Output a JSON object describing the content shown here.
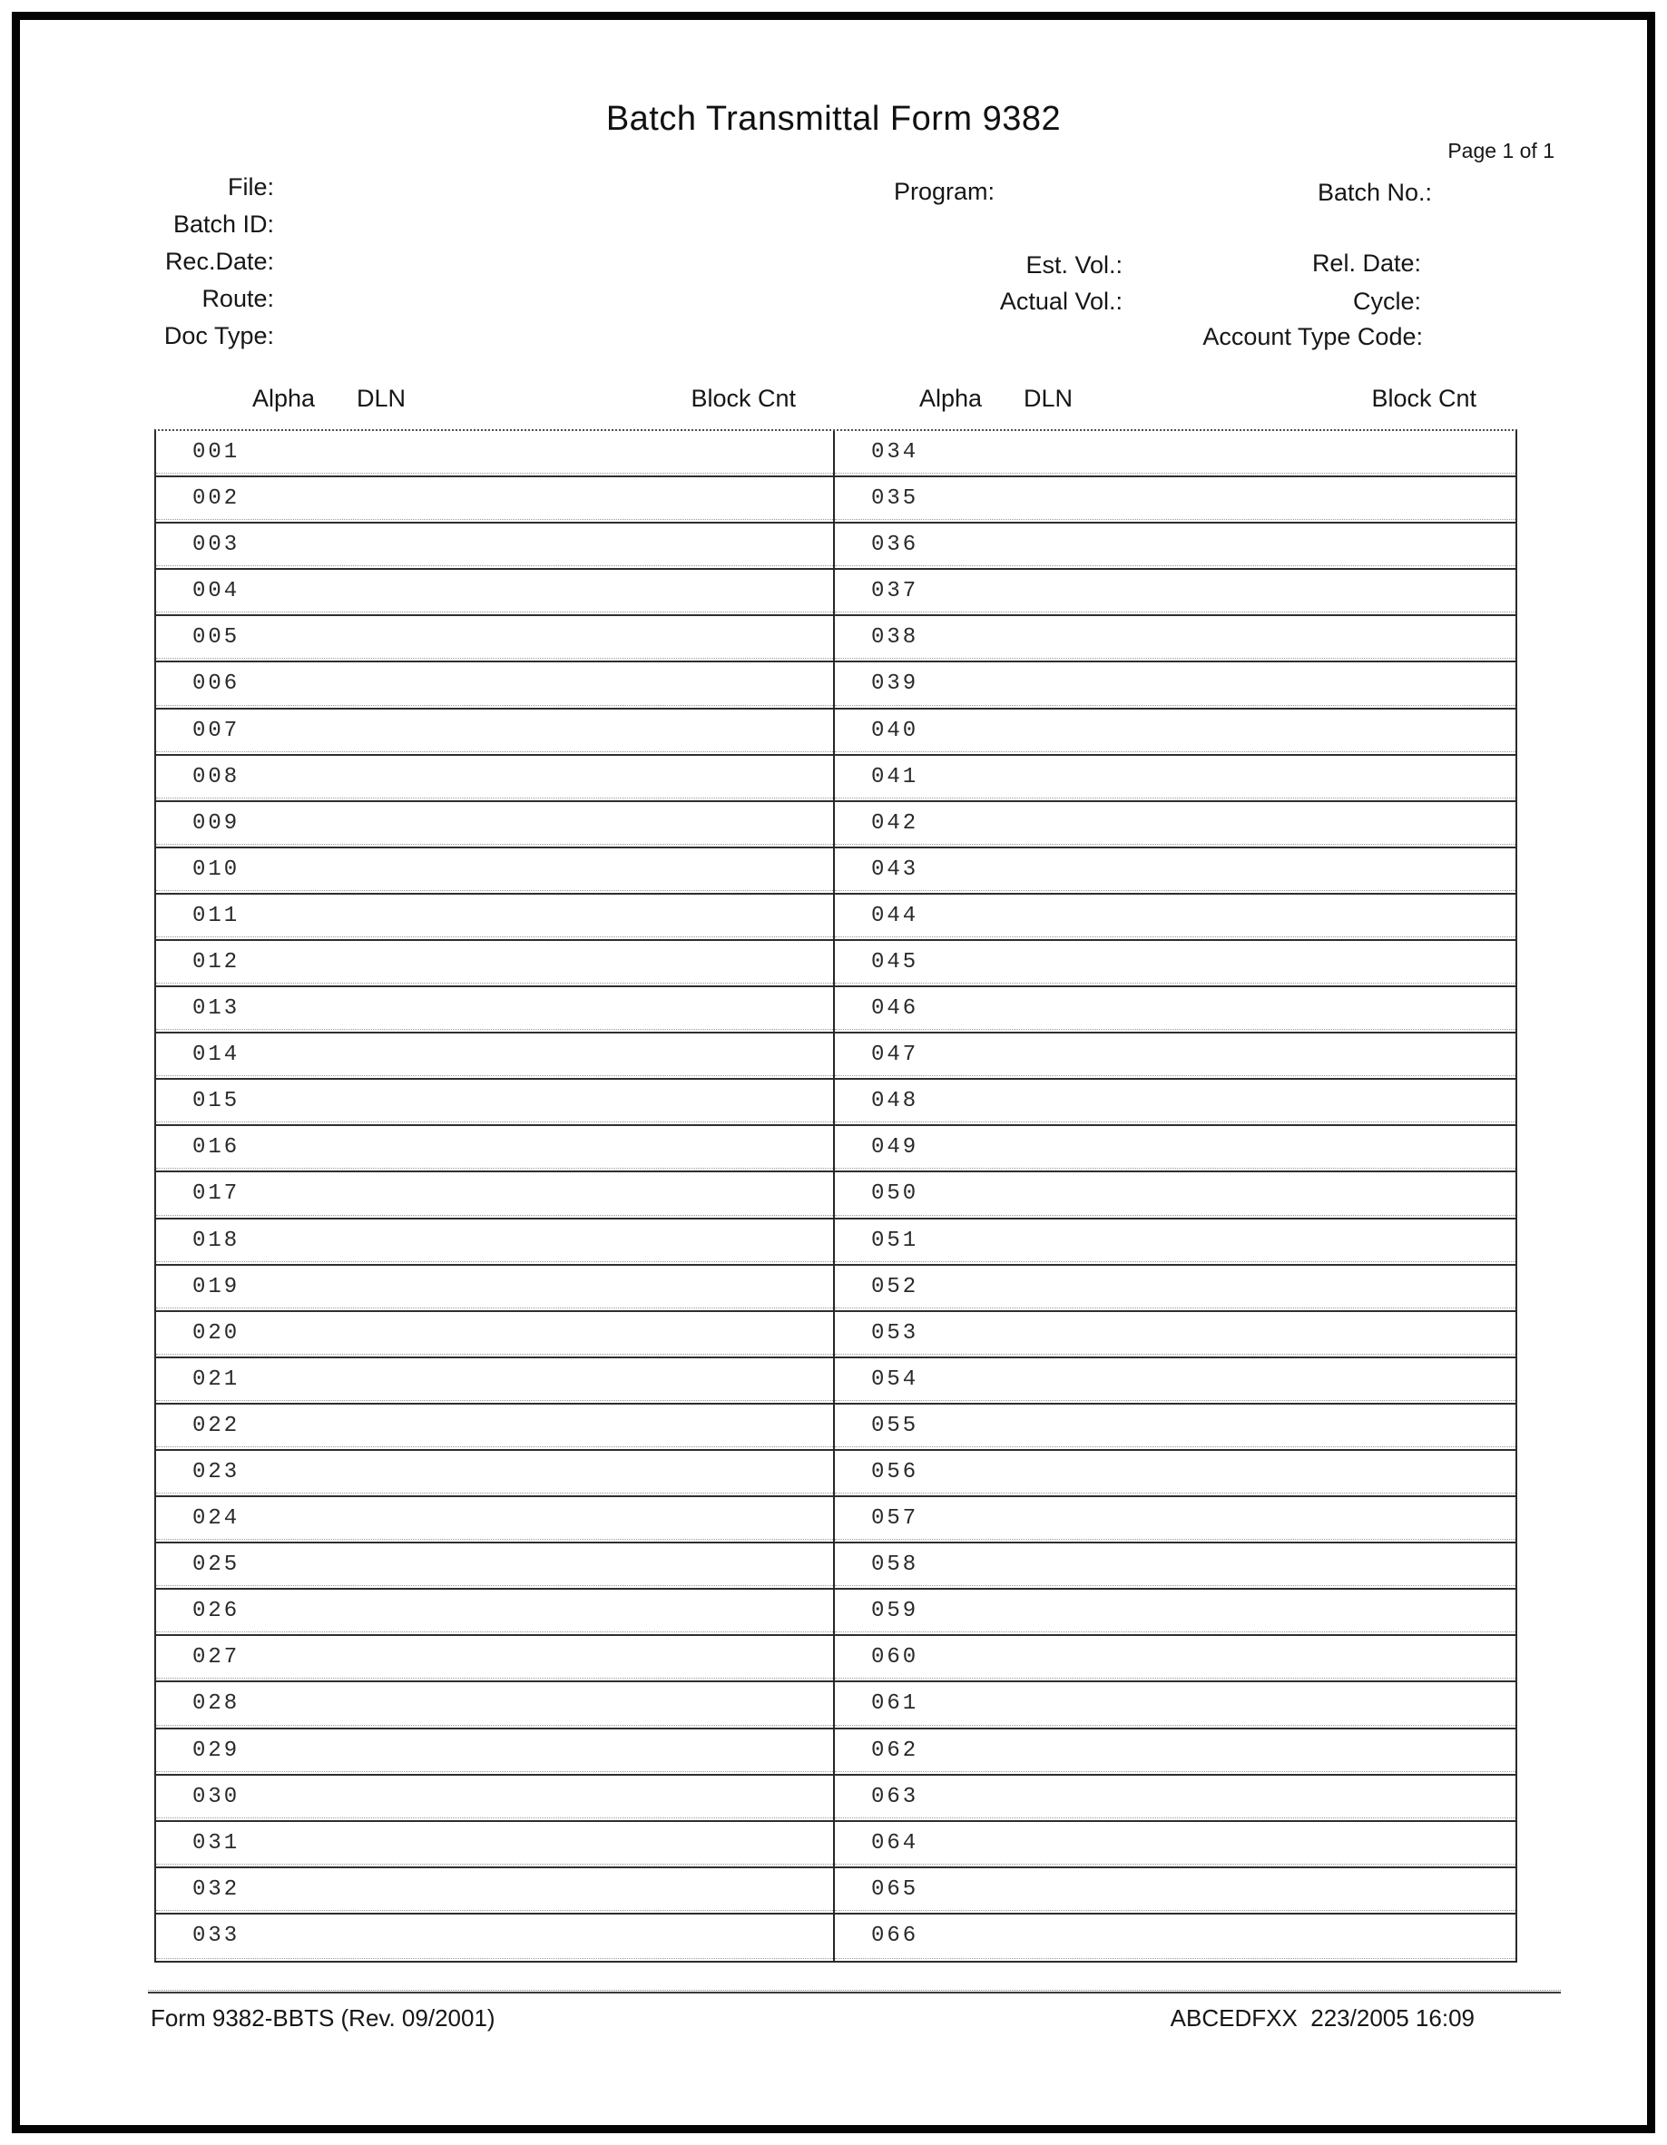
{
  "header": {
    "title": "Batch Transmittal Form 9382",
    "page_indicator": "Page 1 of 1"
  },
  "fields": {
    "file": "File:",
    "batch_id": "Batch ID:",
    "rec_date": "Rec.Date:",
    "route": "Route:",
    "doc_type": "Doc Type:",
    "program": "Program:",
    "batch_no": "Batch No.:",
    "est_vol": "Est. Vol.:",
    "rel_date": "Rel. Date:",
    "actual_vol": "Actual Vol.:",
    "cycle": "Cycle:",
    "account_type_code": "Account Type Code:"
  },
  "table": {
    "headers": {
      "alpha": "Alpha",
      "dln": "DLN",
      "block_cnt": "Block Cnt"
    },
    "left_rows": [
      "001",
      "002",
      "003",
      "004",
      "005",
      "006",
      "007",
      "008",
      "009",
      "010",
      "011",
      "012",
      "013",
      "014",
      "015",
      "016",
      "017",
      "018",
      "019",
      "020",
      "021",
      "022",
      "023",
      "024",
      "025",
      "026",
      "027",
      "028",
      "029",
      "030",
      "031",
      "032",
      "033"
    ],
    "right_rows": [
      "034",
      "035",
      "036",
      "037",
      "038",
      "039",
      "040",
      "041",
      "042",
      "043",
      "044",
      "045",
      "046",
      "047",
      "048",
      "049",
      "050",
      "051",
      "052",
      "053",
      "054",
      "055",
      "056",
      "057",
      "058",
      "059",
      "060",
      "061",
      "062",
      "063",
      "064",
      "065",
      "066"
    ]
  },
  "footer": {
    "form_id": "Form 9382-BBTS (Rev. 09/2001)",
    "system_stamp": "ABCEDFXX  223/2005 16:09"
  }
}
